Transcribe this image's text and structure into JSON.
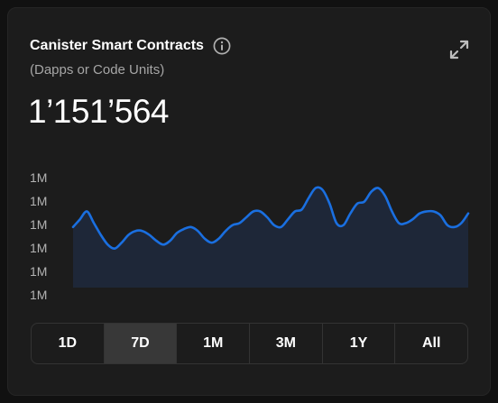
{
  "card": {
    "title": "Canister Smart Contracts",
    "subtitle": "(Dapps or Code Units)",
    "value": "1’151’564",
    "info_icon": "info-icon",
    "expand_icon": "expand-icon"
  },
  "colors": {
    "line": "#1a6fe0",
    "area": "#1e2738",
    "active_range_bg": "#383838"
  },
  "ranges": {
    "items": [
      "1D",
      "7D",
      "1M",
      "3M",
      "1Y",
      "All"
    ],
    "selected": "7D"
  },
  "chart_data": {
    "type": "area",
    "title": "",
    "xlabel": "",
    "ylabel": "",
    "y_tick_labels": [
      "1M",
      "1M",
      "1M",
      "1M",
      "1M",
      "1M"
    ],
    "ylim": [
      1146000,
      1152000
    ],
    "grid": false,
    "legend": "none",
    "series": [
      {
        "values": [
          1149100,
          1149500,
          1149900,
          1149300,
          1148700,
          1148200,
          1148000,
          1148300,
          1148700,
          1148900,
          1148900,
          1148700,
          1148400,
          1148200,
          1148400,
          1148800,
          1149000,
          1149100,
          1148900,
          1148500,
          1148300,
          1148500,
          1148900,
          1149200,
          1149300,
          1149600,
          1149900,
          1149900,
          1149600,
          1149200,
          1149100,
          1149500,
          1149900,
          1150000,
          1150600,
          1151100,
          1151000,
          1150300,
          1149300,
          1149200,
          1149800,
          1150300,
          1150400,
          1150900,
          1151100,
          1150700,
          1149900,
          1149300,
          1149300,
          1149500,
          1149800,
          1149900,
          1149900,
          1149700,
          1149200,
          1149100,
          1149300,
          1149800
        ]
      }
    ]
  }
}
